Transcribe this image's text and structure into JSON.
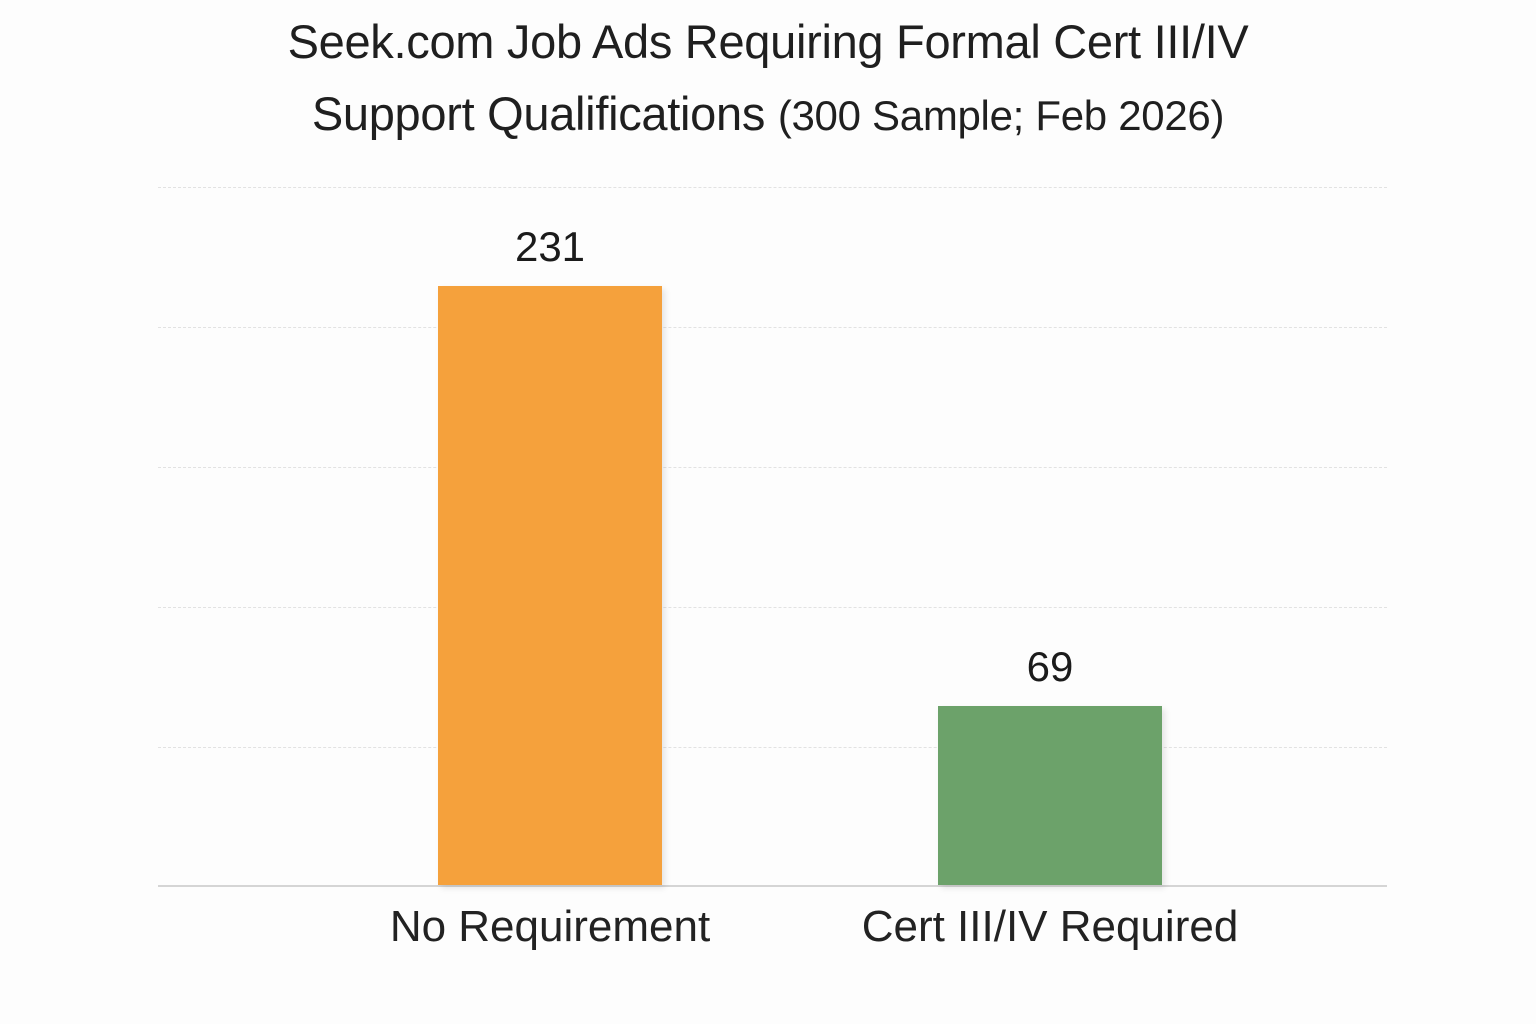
{
  "chart_data": {
    "type": "bar",
    "title": "Seek.com Job Ads Requiring Formal Cert III/IV Support Qualifications (300 Sample; Feb 2026)",
    "title_line1": "Seek.com Job Ads Requiring Formal Cert III/IV",
    "title_line2_main": "Support Qualifications",
    "title_line2_note": "(300 Sample; Feb 2026)",
    "categories": [
      "No Requirement",
      "Cert III/IV Required"
    ],
    "values": [
      231,
      69
    ],
    "bar_colors": [
      "#F5A13C",
      "#6CA26A"
    ],
    "xlabel": "",
    "ylabel": "",
    "ylim": [
      0,
      270
    ],
    "grid": {
      "horizontal": true,
      "line_count": 6,
      "style": "dashed",
      "color": "#E2E2E2",
      "y_tick_labels_visible": false
    },
    "legend_position": "none",
    "colors": {
      "background": "#FDFDFD",
      "title_text": "#1F1F1F",
      "label_text": "#222222",
      "axis_line": "#D5D5D5"
    }
  }
}
